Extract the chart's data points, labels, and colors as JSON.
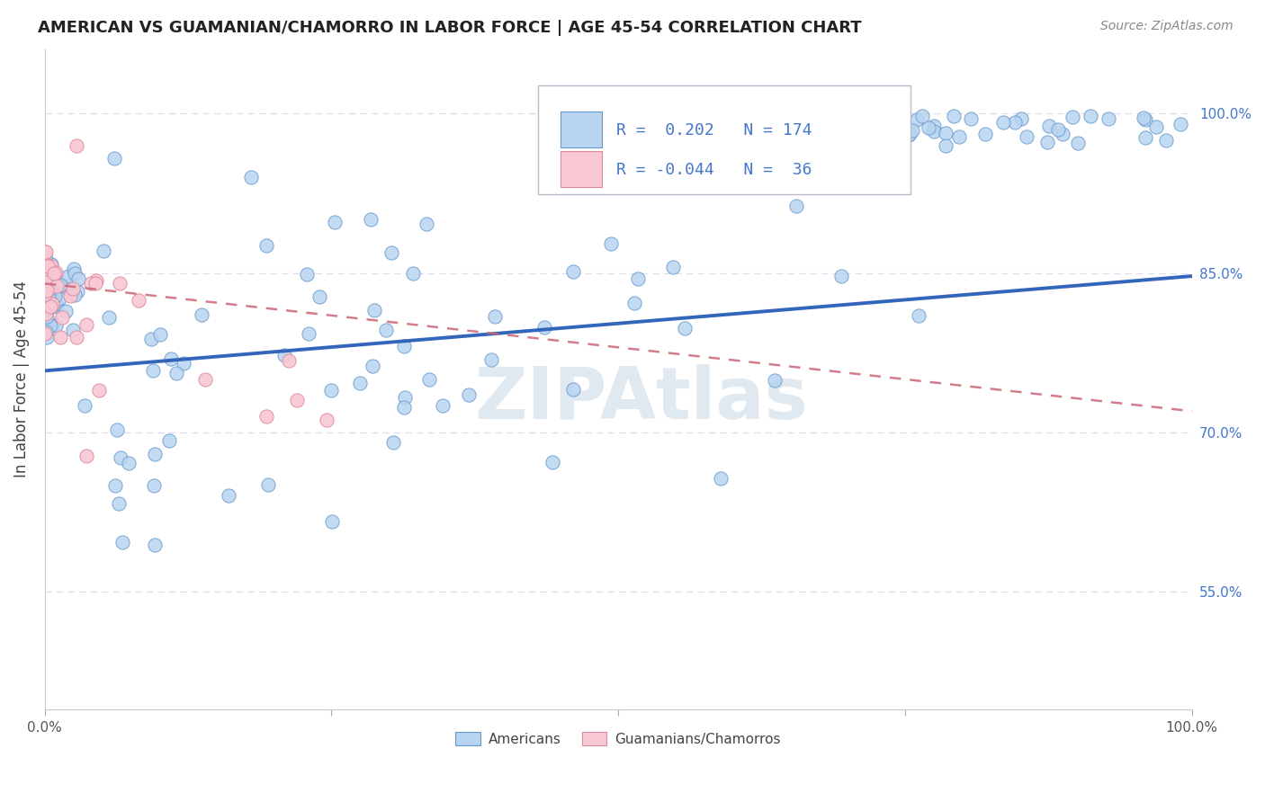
{
  "title": "AMERICAN VS GUAMANIAN/CHAMORRO IN LABOR FORCE | AGE 45-54 CORRELATION CHART",
  "source": "Source: ZipAtlas.com",
  "ylabel": "In Labor Force | Age 45-54",
  "xlim": [
    0.0,
    1.0
  ],
  "ylim": [
    0.44,
    1.06
  ],
  "ytick_labels_right": [
    "100.0%",
    "85.0%",
    "70.0%",
    "55.0%"
  ],
  "ytick_vals_right": [
    1.0,
    0.85,
    0.7,
    0.55
  ],
  "legend_r_american": "0.202",
  "legend_n_american": "174",
  "legend_r_guamanian": "-0.044",
  "legend_n_guamanian": "36",
  "american_fill": "#b8d4f0",
  "american_edge": "#6699cc",
  "guamanian_fill": "#f8c8d4",
  "guamanian_edge": "#dd8899",
  "american_line_color": "#3366bb",
  "guamanian_line_color": "#cc6677",
  "watermark_color": "#e0e8f0",
  "legend_label_american": "Americans",
  "legend_label_guamanian": "Guamanians/Chamorros",
  "american_line_x": [
    0.0,
    1.0
  ],
  "american_line_y": [
    0.758,
    0.847
  ],
  "guamanian_line_x": [
    0.0,
    1.0
  ],
  "guamanian_line_y": [
    0.84,
    0.72
  ]
}
